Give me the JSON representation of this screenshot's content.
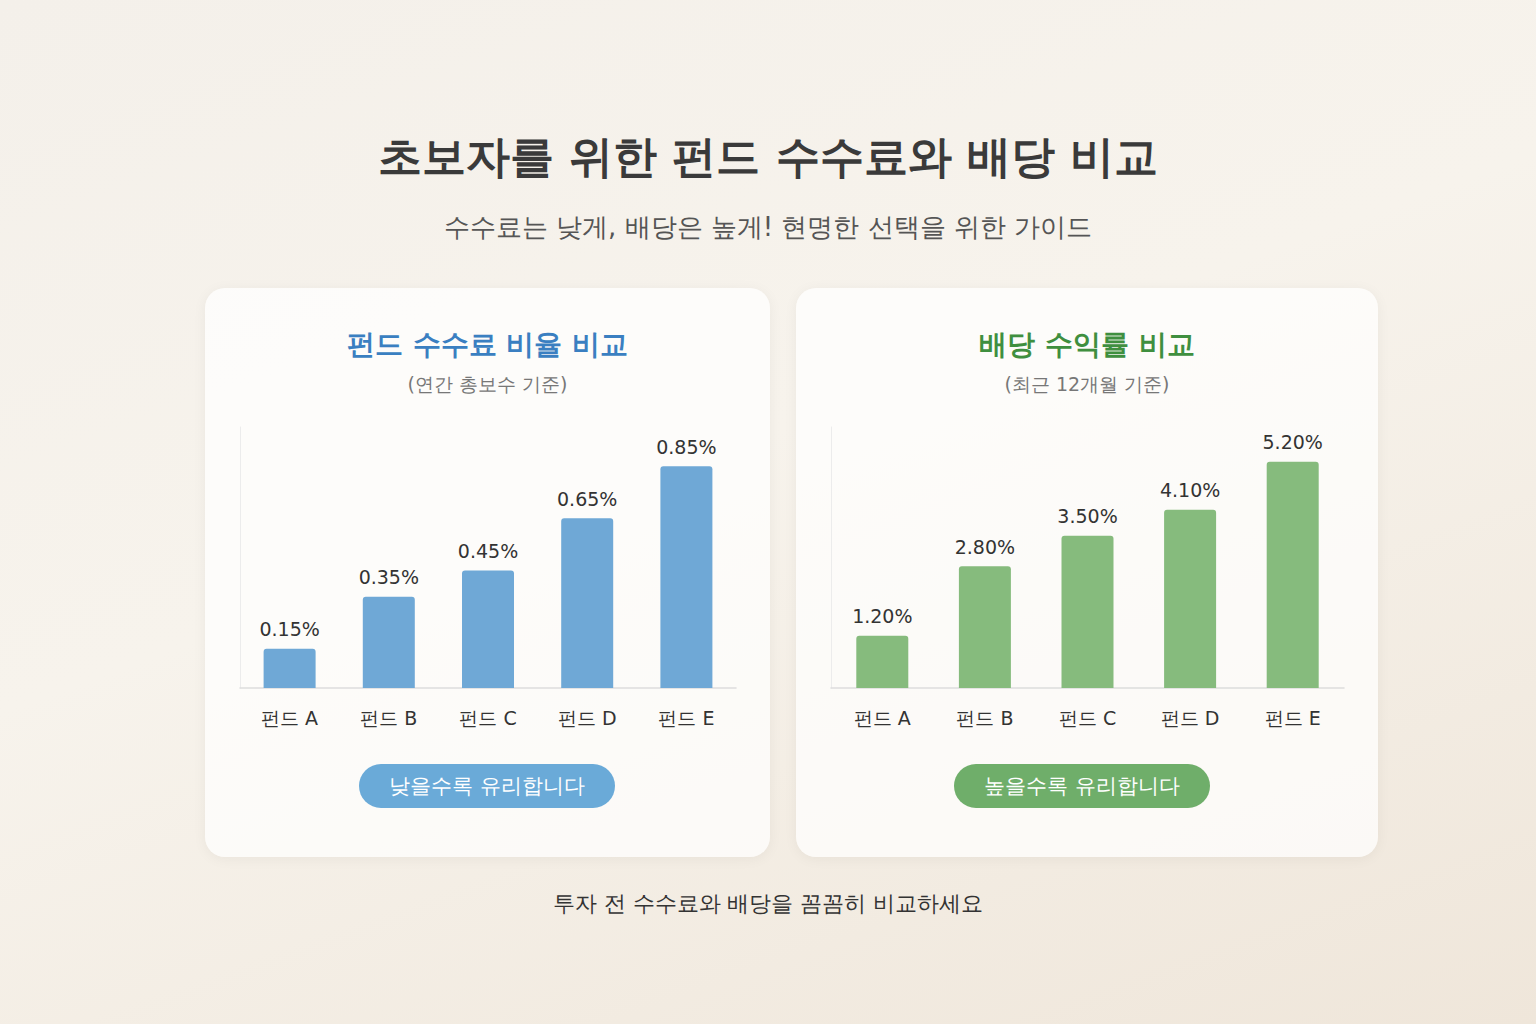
{
  "title": "초보자를 위한 펀드 수수료와 배당 비교",
  "subtitle": "수수료는 낮게, 배당은 높게! 현명한 선택을 위한 가이드",
  "footer": "투자 전 수수료와 배당을 꼼꼼히 비교하세요",
  "chart_data": [
    {
      "type": "bar",
      "title": "펀드 수수료 비율 비교",
      "subtitle": "(연간 총보수 기준)",
      "categories": [
        "펀드 A",
        "펀드 B",
        "펀드 C",
        "펀드 D",
        "펀드 E"
      ],
      "values": [
        0.15,
        0.35,
        0.45,
        0.65,
        0.85
      ],
      "value_labels": [
        "0.15%",
        "0.35%",
        "0.45%",
        "0.65%",
        "0.85%"
      ],
      "color": "#6fa8d6",
      "ylim": [
        0,
        1
      ],
      "grid": false,
      "data_labels": true,
      "tick_labels": "x",
      "annotation": "낮을수록 유리합니다"
    },
    {
      "type": "bar",
      "title": "배당 수익률 비교",
      "subtitle": "(최근 12개월 기준)",
      "categories": [
        "펀드 A",
        "펀드 B",
        "펀드 C",
        "펀드 D",
        "펀드 E"
      ],
      "values": [
        1.2,
        2.8,
        3.5,
        4.1,
        5.2
      ],
      "value_labels": [
        "1.20%",
        "2.80%",
        "3.50%",
        "4.10%",
        "5.20%"
      ],
      "color": "#86bb7d",
      "ylim": [
        0,
        6
      ],
      "grid": false,
      "data_labels": true,
      "tick_labels": "x",
      "annotation": "높을수록 유리합니다"
    }
  ]
}
